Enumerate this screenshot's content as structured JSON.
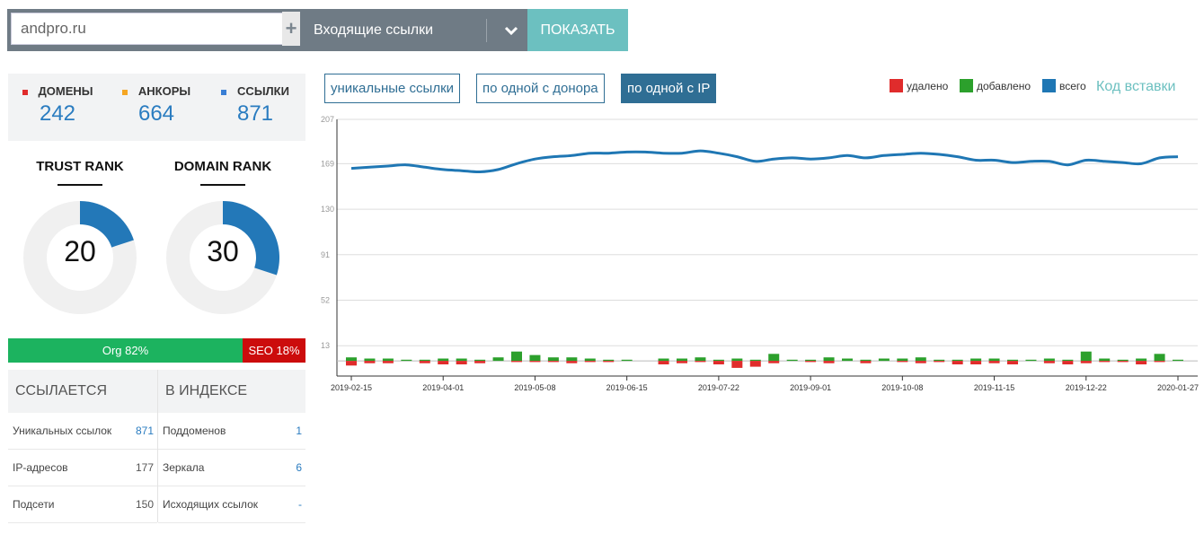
{
  "search": {
    "domain_value": "andpro.ru",
    "add_label": "+",
    "select_label": "Входящие ссылки",
    "show_label": "ПОКАЗАТЬ"
  },
  "stats": [
    {
      "label": "ДОМЕНЫ",
      "value": "242",
      "color": "#e02c2c"
    },
    {
      "label": "АНКОРЫ",
      "value": "664",
      "color": "#f5a623"
    },
    {
      "label": "ССЫЛКИ",
      "value": "871",
      "color": "#3a7fd5"
    }
  ],
  "ranks": [
    {
      "title": "TRUST RANK",
      "value": "20",
      "fraction": 0.2
    },
    {
      "title": "DOMAIN RANK",
      "value": "30",
      "fraction": 0.3
    }
  ],
  "org_seo": {
    "org_label": "Org 82%",
    "seo_label": "SEO 18%",
    "org_fraction": 0.82
  },
  "table": {
    "left_header": "ССЫЛАЕТСЯ",
    "right_header": "В ИНДЕКСЕ",
    "left_rows": [
      {
        "label": "Уникальных ссылок",
        "value": "871"
      },
      {
        "label": "IP-адресов",
        "value": "177"
      },
      {
        "label": "Подсети",
        "value": "150"
      }
    ],
    "right_rows": [
      {
        "label": "Поддоменов",
        "value": "1"
      },
      {
        "label": "Зеркала",
        "value": "6"
      },
      {
        "label": "Исходящих ссылок",
        "value": "-"
      }
    ]
  },
  "tabs": [
    {
      "label": "уникальные ссылки",
      "active": false
    },
    {
      "label": "по одной с донора",
      "active": false
    },
    {
      "label": "по одной с IP",
      "active": true
    }
  ],
  "legend": [
    {
      "label": "удалено",
      "color": "#e02c2c"
    },
    {
      "label": "добавлено",
      "color": "#2ca02c"
    },
    {
      "label": "всего",
      "color": "#1f77b4"
    }
  ],
  "embed_label": "Код вставки",
  "chart_data": {
    "type": "line",
    "title": "",
    "xlabel": "",
    "ylabel": "",
    "ylim": [
      -13,
      207
    ],
    "y_ticks": [
      "13",
      "52",
      "91",
      "130",
      "169",
      "207"
    ],
    "x_ticks": [
      "2019-02-15",
      "2019-04-01",
      "2019-05-08",
      "2019-06-15",
      "2019-07-22",
      "2019-09-01",
      "2019-10-08",
      "2019-11-15",
      "2019-12-22",
      "2020-01-27"
    ],
    "grid": true,
    "legend_position": "top-right",
    "series": [
      {
        "name": "всего",
        "color": "#1f77b4",
        "values": [
          165,
          166,
          167,
          168,
          166,
          164,
          163,
          162,
          164,
          169,
          173,
          175,
          176,
          178,
          178,
          179,
          179,
          178,
          178,
          180,
          178,
          175,
          171,
          173,
          174,
          173,
          174,
          176,
          174,
          176,
          177,
          178,
          177,
          175,
          172,
          172,
          170,
          171,
          171,
          168,
          172,
          171,
          170,
          169,
          174,
          175
        ]
      },
      {
        "name": "добавлено",
        "color": "#2ca02c",
        "values": [
          3,
          2,
          2,
          1,
          1,
          2,
          2,
          1,
          3,
          8,
          5,
          3,
          3,
          2,
          1,
          1,
          0,
          2,
          2,
          3,
          1,
          2,
          1,
          6,
          1,
          1,
          3,
          2,
          1,
          2,
          2,
          3,
          1,
          1,
          2,
          2,
          1,
          1,
          2,
          1,
          8,
          2,
          1,
          2,
          6,
          1
        ]
      },
      {
        "name": "удалено",
        "color": "#e02c2c",
        "values": [
          4,
          2,
          2,
          0,
          2,
          3,
          3,
          2,
          0,
          1,
          1,
          1,
          2,
          1,
          1,
          0,
          0,
          3,
          2,
          1,
          3,
          6,
          5,
          2,
          0,
          1,
          2,
          0,
          2,
          0,
          1,
          2,
          1,
          3,
          3,
          2,
          3,
          0,
          2,
          3,
          2,
          1,
          1,
          3,
          1,
          0
        ]
      }
    ]
  }
}
